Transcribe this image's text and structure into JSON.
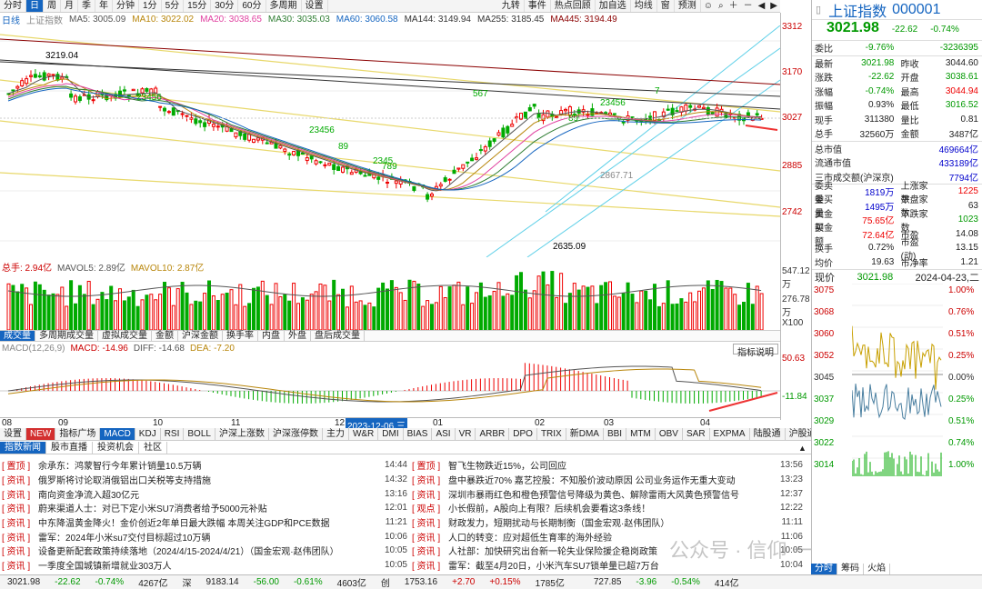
{
  "toolbar": {
    "tabs": [
      "分时",
      "日",
      "周",
      "月",
      "季",
      "年",
      "分钟",
      "1分",
      "5分",
      "15分",
      "30分",
      "60分",
      "多周期",
      "设置"
    ],
    "right": [
      "九转",
      "事件",
      "热点回顾",
      "加自选",
      "均线",
      "窗",
      "预测"
    ]
  },
  "ma_bar": {
    "period": "日线",
    "name": "上证指数",
    "items": [
      {
        "label": "MA5: 3005.09",
        "color": "#555555"
      },
      {
        "label": "MA10: 3022.02",
        "color": "#b8860b"
      },
      {
        "label": "MA20: 3038.65",
        "color": "#e040a0"
      },
      {
        "label": "MA30: 3035.03",
        "color": "#2e7d32"
      },
      {
        "label": "MA60: 3060.58",
        "color": "#1565c0"
      },
      {
        "label": "MA144: 3149.94",
        "color": "#333333"
      },
      {
        "label": "MA255: 3185.45",
        "color": "#333333"
      },
      {
        "label": "MA445: 3194.49",
        "color": "#8b0000"
      }
    ]
  },
  "price_axis": {
    "p1": "3312",
    "p2": "3170",
    "p3": "3027",
    "p4": "2885",
    "p5": "2742"
  },
  "annotations": {
    "high": "3219.04",
    "low": "2635.09",
    "mid": "2867.71",
    "seq1": "23456",
    "seq2": "89",
    "seq3": "23456",
    "seq4": "789",
    "seq5": "2345",
    "seq6": "7",
    "seq7": "23456",
    "seq8": "89",
    "seq9": "567"
  },
  "vol_bar": {
    "total": "总手: 2.94亿",
    "mavol5": "MAVOL5: 2.89亿",
    "mavol10": "MAVOL10: 2.87亿",
    "axis_top": "547.12万",
    "axis_mid": "276.78万",
    "unit": "X100"
  },
  "vol_tabs": [
    "成交量",
    "多周期成交量",
    "虚拟成交量",
    "金额",
    "沪深金额",
    "换手率",
    "内盘",
    "外盘",
    "盘后成交量"
  ],
  "macd_bar": {
    "name": "MACD(12,26,9)",
    "macd": "MACD: -14.96",
    "diff": "DIFF: -14.68",
    "dea": "DEA: -7.20",
    "btn": "指标说明",
    "axis_top": "50.63",
    "axis_bot": "-11.84"
  },
  "dates": {
    "d1": "08",
    "d2": "09",
    "d3": "10",
    "d4": "11",
    "d5": "12",
    "d6": "2023-12-06,三",
    "d7": "01",
    "d8": "02",
    "d9": "03",
    "d10": "04"
  },
  "ind_tabs": [
    "设置",
    "NEW",
    "指标广场",
    "MACD",
    "KDJ",
    "RSI",
    "BOLL",
    "沪深上涨数",
    "沪深涨停数",
    "主力",
    "W&R",
    "DMI",
    "BIAS",
    "ASI",
    "VR",
    "ARBR",
    "DPO",
    "TRIX",
    "新DMA",
    "BBI",
    "MTM",
    "OBV",
    "SAR",
    "EXPMA",
    "陆股通",
    "沪股通",
    "深"
  ],
  "news_tabs": [
    "指数新闻",
    "股市直播",
    "投资机会",
    "社区"
  ],
  "news_left": [
    {
      "cat": "[ 置顶 ]",
      "title": "余承东：鸿蒙智行今年累计销量10.5万辆",
      "time": "14:44"
    },
    {
      "cat": "[ 资讯 ]",
      "title": "俄罗斯将讨论取消俄铝出口关税等支持措施",
      "time": "14:32"
    },
    {
      "cat": "[ 资讯 ]",
      "title": "南向资金净流入超30亿元",
      "time": "13:16"
    },
    {
      "cat": "[ 资讯 ]",
      "title": "蔚来渠道人士：对已下定小米SU7消费者给予5000元补贴",
      "time": "12:01"
    },
    {
      "cat": "[ 资讯 ]",
      "title": "中东降温黄金降火！金价创近2年单日最大跌幅 本周关注GDP和PCE数据",
      "time": "11:21"
    },
    {
      "cat": "[ 资讯 ]",
      "title": "雷军：2024年小米su7交付目标超过10万辆",
      "time": "10:06"
    },
    {
      "cat": "[ 资讯 ]",
      "title": "设备更新配套政策持续落地（2024/4/15-2024/4/21）（国金宏观·赵伟团队）",
      "time": "10:05"
    },
    {
      "cat": "[ 资讯 ]",
      "title": "一季度全国城镇新增就业303万人",
      "time": "10:05"
    }
  ],
  "news_right": [
    {
      "cat": "[ 置顶 ]",
      "title": "智飞生物跌近15%，公司回应",
      "time": "13:56"
    },
    {
      "cat": "[ 资讯 ]",
      "title": "盘中暴跌近70% 嘉艺控股：不知股价波动原因 公司业务运作无重大变动",
      "time": "13:23"
    },
    {
      "cat": "[ 资讯 ]",
      "title": "深圳市暴雨红色和橙色预警信号降级为黄色、解除雷雨大风黄色预警信号",
      "time": "12:37"
    },
    {
      "cat": "[ 观点 ]",
      "title": "小长假前，A股向上有限？后续机会要看这3条线！",
      "time": "12:22"
    },
    {
      "cat": "[ 资讯 ]",
      "title": "财政发力，短期扰动与长期制衡（国金宏观·赵伟团队）",
      "time": "11:11"
    },
    {
      "cat": "[ 资讯 ]",
      "title": "人口的转变：应对超低生育率的海外经验",
      "time": "11:06"
    },
    {
      "cat": "[ 资讯 ]",
      "title": "人社部：加快研究出台新一轮失业保险援企稳岗政策",
      "time": "10:05"
    },
    {
      "cat": "[ 资讯 ]",
      "title": "雷军：截至4月20日，小米汽车SU7锁单量已超7万台",
      "time": "10:04"
    }
  ],
  "watermark": "公众号 · 信仰 一分钟",
  "status": [
    "3021.98",
    "-22.62",
    "-0.74%",
    "4267亿",
    "深",
    "9183.14",
    "-56.00",
    "-0.61%",
    "4603亿",
    "创",
    "1753.16",
    "+2.70",
    "+0.15%",
    "1785亿",
    "",
    "727.85",
    "-3.96",
    "-0.54%",
    "414亿"
  ],
  "quote": {
    "name": "上证指数",
    "code": "000001",
    "price": "3021.98",
    "change": "-22.62",
    "pct": "-0.74%",
    "rows1": [
      {
        "k": "委比",
        "v": "-9.76%",
        "c": "grn",
        "k2": "",
        "v2": "-3236395",
        "c2": "grn"
      }
    ],
    "rows2": [
      {
        "k": "最新",
        "v": "3021.98",
        "c": "grn",
        "k2": "昨收",
        "v2": "3044.60",
        "c2": ""
      },
      {
        "k": "涨跌",
        "v": "-22.62",
        "c": "grn",
        "k2": "开盘",
        "v2": "3038.61",
        "c2": "grn"
      },
      {
        "k": "涨幅",
        "v": "-0.74%",
        "c": "grn",
        "k2": "最高",
        "v2": "3044.94",
        "c2": "red"
      },
      {
        "k": "振幅",
        "v": "0.93%",
        "c": "",
        "k2": "最低",
        "v2": "3016.52",
        "c2": "grn"
      },
      {
        "k": "现手",
        "v": "311380",
        "c": "",
        "k2": "量比",
        "v2": "0.81",
        "c2": ""
      },
      {
        "k": "总手",
        "v": "32560万",
        "c": "",
        "k2": "金额",
        "v2": "3487亿",
        "c2": ""
      }
    ],
    "rows3": [
      {
        "k": "总市值",
        "v": "469664亿"
      },
      {
        "k": "流通市值",
        "v": "433189亿"
      },
      {
        "k": "三市成交额(沪深京)",
        "v": "7794亿"
      }
    ],
    "rows4": [
      {
        "k": "委卖量",
        "v": "1819万",
        "c": "red",
        "k2": "上涨家数",
        "v2": "1225",
        "c2": "red"
      },
      {
        "k": "委买量",
        "v": "1495万",
        "c": "red",
        "k2": "平盘家数",
        "v2": "63",
        "c2": ""
      },
      {
        "k": "卖金额",
        "v": "75.65亿",
        "c": "red",
        "k2": "下跌家数",
        "v2": "1023",
        "c2": "grn"
      },
      {
        "k": "买金额",
        "v": "72.64亿",
        "c": "red",
        "k2": "市盈",
        "v2": "14.08",
        "c2": ""
      },
      {
        "k": "换手",
        "v": "0.72%",
        "c": "",
        "k2": "市盈(动)",
        "v2": "13.15",
        "c2": ""
      },
      {
        "k": "均价",
        "v": "19.63",
        "c": "",
        "k2": "市净率",
        "v2": "1.21",
        "c2": ""
      }
    ],
    "mini_title": "现价",
    "mini_price": "3021.98",
    "mini_date": "2024-04-23,二",
    "mini_left": [
      "3075",
      "3068",
      "3060",
      "3052",
      "3045",
      "3037",
      "3029",
      "3022",
      "3014"
    ],
    "mini_right": [
      "1.00%",
      "0.76%",
      "0.51%",
      "0.25%",
      "0.00%",
      "0.25%",
      "0.51%",
      "0.74%",
      "1.00%"
    ],
    "mini_tabs": [
      "分时",
      "筹码",
      "火焰"
    ]
  }
}
